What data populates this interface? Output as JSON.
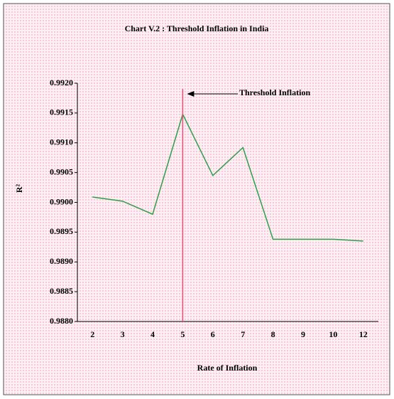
{
  "chart_data": {
    "type": "line",
    "title": "Chart V.2 : Threshold Inflation in India",
    "x_label": "Rate of Inflation",
    "y_label": "R²",
    "categories": [
      "2",
      "3",
      "4",
      "5",
      "6",
      "7",
      "8",
      "9",
      "10",
      "12"
    ],
    "series": [
      {
        "name": "R²",
        "color": "#2e9e4a",
        "values": [
          0.99009,
          0.99002,
          0.9898,
          0.99148,
          0.99045,
          0.99092,
          0.98938,
          0.98938,
          0.98938,
          0.98935
        ]
      }
    ],
    "ylim": [
      0.988,
      0.992
    ],
    "yticks": [
      {
        "value": 0.988,
        "label": "0.9880"
      },
      0.9885,
      {
        "value": 0.989,
        "label": "0.9890"
      },
      0.9895,
      {
        "value": 0.99,
        "label": "0.9900"
      },
      0.9905,
      {
        "value": 0.991,
        "label": "0.9910"
      },
      0.9915,
      {
        "value": 0.992,
        "label": "0.9920"
      }
    ],
    "threshold_line": {
      "x": "5",
      "label": "Threshold Inflation",
      "color": "#e8507a"
    }
  }
}
